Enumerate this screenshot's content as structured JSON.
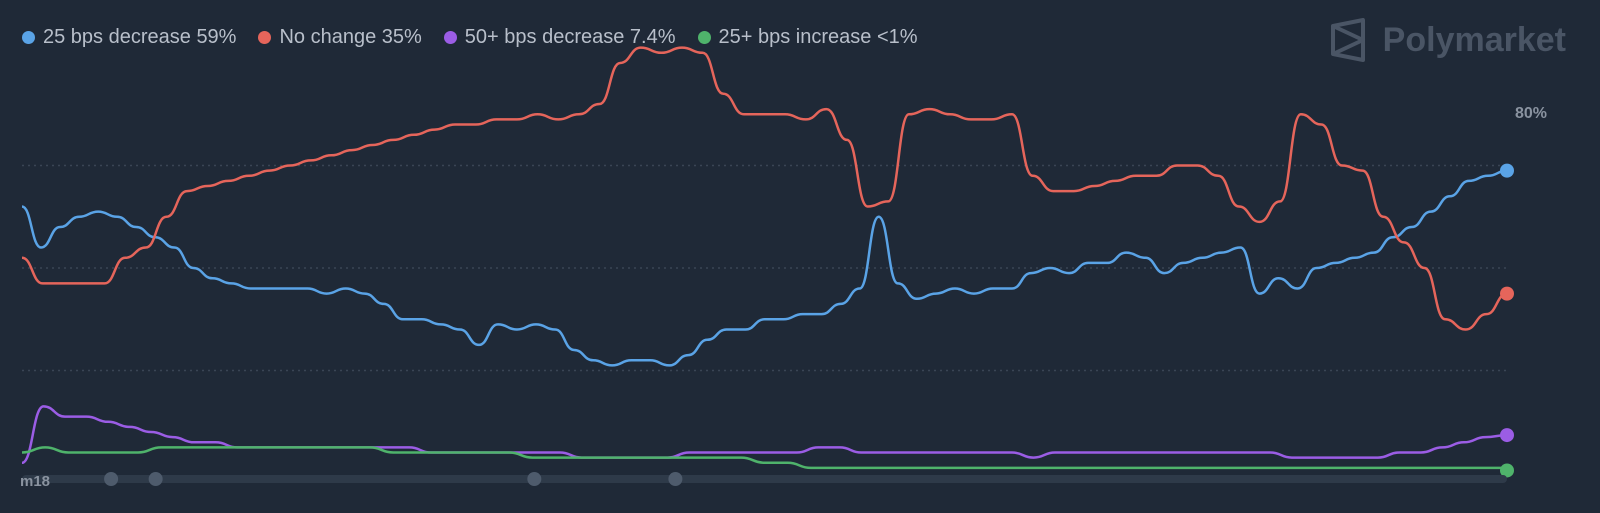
{
  "brand": {
    "name": "Polymarket",
    "logo_icon": "polymarket-logo-icon"
  },
  "chart_data": {
    "type": "line",
    "title": "",
    "xlabel": "",
    "ylabel": "",
    "ylim": [
      0,
      80
    ],
    "y_axis_label_overlap": "80%",
    "grid": "horizontal dotted",
    "legend_position": "top-left",
    "x_tick_label_overlap": "m18",
    "series": [
      {
        "name": "25 bps decrease",
        "label": "25 bps decrease 59%",
        "color": "#5aa3e6",
        "values": [
          52,
          44,
          48,
          50,
          51,
          50,
          48,
          46,
          44,
          40,
          38,
          37,
          36,
          36,
          36,
          36,
          35,
          36,
          35,
          33,
          30,
          30,
          29,
          28,
          25,
          29,
          28,
          29,
          28,
          24,
          22,
          21,
          22,
          22,
          21,
          23,
          26,
          28,
          28,
          30,
          30,
          31,
          31,
          33,
          36,
          50,
          37,
          34,
          35,
          36,
          35,
          36,
          36,
          39,
          40,
          39,
          41,
          41,
          43,
          42,
          39,
          41,
          42,
          43,
          44,
          35,
          38,
          36,
          40,
          41,
          42,
          43,
          46,
          48,
          51,
          54,
          57,
          58,
          59
        ],
        "end_value": 59
      },
      {
        "name": "No change",
        "label": "No change 35%",
        "color": "#e5655b",
        "values": [
          42,
          37,
          37,
          37,
          37,
          42,
          44,
          50,
          55,
          56,
          57,
          58,
          59,
          60,
          61,
          62,
          63,
          64,
          65,
          66,
          67,
          68,
          68,
          69,
          69,
          70,
          69,
          70,
          72,
          80,
          83,
          82,
          83,
          82,
          74,
          70,
          70,
          70,
          69,
          71,
          65,
          52,
          53,
          70,
          71,
          70,
          69,
          69,
          70,
          58,
          55,
          55,
          56,
          57,
          58,
          58,
          60,
          60,
          58,
          52,
          49,
          53,
          70,
          68,
          60,
          59,
          50,
          45,
          40,
          30,
          28,
          31,
          35
        ],
        "end_value": 35
      },
      {
        "name": "50+ bps decrease",
        "label": "50+ bps decrease 7.4%",
        "color": "#9b5de5",
        "values": [
          2,
          13,
          11,
          11,
          10,
          9,
          8,
          7,
          6,
          6,
          5,
          5,
          5,
          5,
          5,
          5,
          5,
          5,
          5,
          4,
          4,
          4,
          4,
          4,
          4,
          4,
          3,
          3,
          3,
          3,
          3,
          4,
          4,
          4,
          4,
          4,
          4,
          5,
          5,
          4,
          4,
          4,
          4,
          4,
          4,
          4,
          4,
          3,
          4,
          4,
          4,
          4,
          4,
          4,
          4,
          4,
          4,
          4,
          4,
          3,
          3,
          3,
          3,
          3,
          4,
          4,
          5,
          6,
          7,
          7.4
        ],
        "end_value": 7.4
      },
      {
        "name": "25+ bps increase",
        "label": "25+ bps increase <1%",
        "color": "#4fb36b",
        "values": [
          4,
          5,
          4,
          4,
          4,
          4,
          5,
          5,
          5,
          5,
          5,
          5,
          5,
          5,
          5,
          5,
          4,
          4,
          4,
          4,
          4,
          4,
          3,
          3,
          3,
          3,
          3,
          3,
          3,
          3,
          3,
          3,
          2,
          2,
          1,
          1,
          1,
          1,
          1,
          1,
          1,
          1,
          1,
          1,
          1,
          1,
          1,
          1,
          1,
          1,
          1,
          1,
          1,
          1,
          1,
          1,
          1,
          1,
          1,
          1,
          1,
          1,
          1,
          1,
          1
        ],
        "end_value": 0.5
      }
    ]
  }
}
